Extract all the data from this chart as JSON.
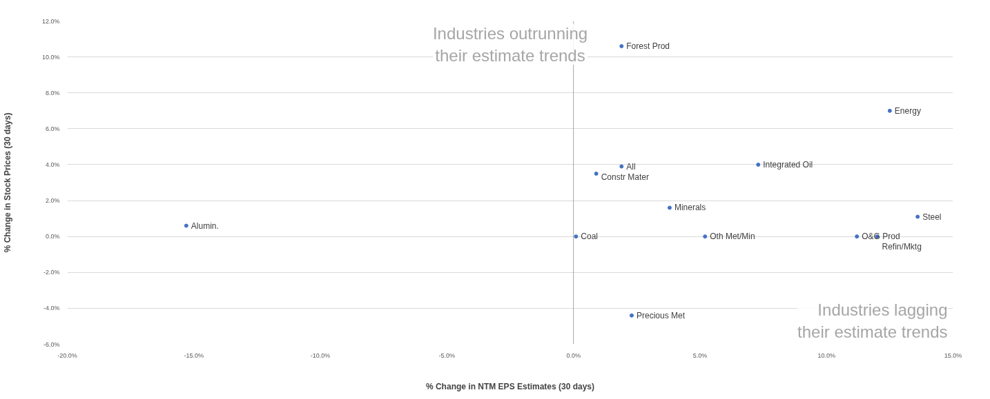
{
  "chart_data": {
    "type": "scatter",
    "xlabel": "% Change in NTM EPS Estimates (30 days)",
    "ylabel": "% Change in Stock Prices (30 days)",
    "x": [
      1.9,
      12.5,
      1.9,
      0.9,
      7.3,
      3.8,
      -15.3,
      13.6,
      0.1,
      5.2,
      11.2,
      12.0,
      2.3
    ],
    "series": [
      {
        "color": "#4472c4",
        "values": [
          10.6,
          7.0,
          3.9,
          3.5,
          4.0,
          1.6,
          0.6,
          1.1,
          0.0,
          0.0,
          0.0,
          0.0,
          -4.4
        ]
      }
    ],
    "annotations": [
      "Industries outrunning\ntheir estimate trends",
      "Industries lagging\ntheir estimate trends",
      {
        "text": "Forest Prod",
        "x": 1.9,
        "y": 10.6
      },
      {
        "text": "Energy",
        "x": 12.5,
        "y": 7.0
      },
      {
        "text": "All",
        "x": 1.9,
        "y": 3.9
      },
      {
        "text": "Constr Mater",
        "x": 0.9,
        "y": 3.5
      },
      {
        "text": "Integrated Oil",
        "x": 7.3,
        "y": 4.0
      },
      {
        "text": "Minerals",
        "x": 3.8,
        "y": 1.6
      },
      {
        "text": "Alumin.",
        "x": -15.3,
        "y": 0.6
      },
      {
        "text": "Steel",
        "x": 13.6,
        "y": 1.1
      },
      {
        "text": "Coal",
        "x": 0.1,
        "y": 0.0
      },
      {
        "text": "Oth Met/Min",
        "x": 5.2,
        "y": 0.0
      },
      {
        "text": "O&G Prod",
        "x": 11.2,
        "y": 0.0
      },
      {
        "text": "Refin/Mktg",
        "x": 12.0,
        "y": 0.0
      },
      {
        "text": "Precious Met",
        "x": 2.3,
        "y": -4.4
      }
    ],
    "ref_lines": [
      {
        "axis": "x",
        "value": 0,
        "label": null,
        "color": "#a6a6a6"
      }
    ],
    "xlim": [
      -20,
      15
    ],
    "ylim": [
      -6,
      12
    ],
    "xticks": [
      {
        "value": -20,
        "label": "-20.0%"
      },
      {
        "value": -15,
        "label": "-15.0%"
      },
      {
        "value": -10,
        "label": "-10.0%"
      },
      {
        "value": -5,
        "label": "-5.0%"
      },
      {
        "value": 0,
        "label": "0.0%"
      },
      {
        "value": 5,
        "label": "5.0%"
      },
      {
        "value": 10,
        "label": "10.0%"
      },
      {
        "value": 15,
        "label": "15.0%"
      }
    ],
    "yticks": [
      {
        "value": -6,
        "label": "-6.0%"
      },
      {
        "value": -4,
        "label": "-4.0%"
      },
      {
        "value": -2,
        "label": "-2.0%"
      },
      {
        "value": 0,
        "label": "0.0%"
      },
      {
        "value": 2,
        "label": "2.0%"
      },
      {
        "value": 4,
        "label": "4.0%"
      },
      {
        "value": 6,
        "label": "6.0%"
      },
      {
        "value": 8,
        "label": "8.0%"
      },
      {
        "value": 10,
        "label": "10.0%"
      },
      {
        "value": 12,
        "label": "12.0%"
      }
    ],
    "grid": "y",
    "marker": "circle"
  }
}
